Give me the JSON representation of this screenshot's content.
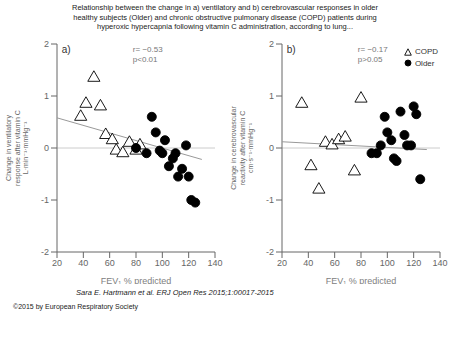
{
  "title": "Relationship between the change in a) ventilatory and b) cerebrovascular responses in older\nhealthy subjects (Older) and chronic obstructive pulmonary disease (COPD) patients during\nhyperoxic hypercapnia following vitamin C administration, according to lung...",
  "footer": [
    "Sara E. Hartmann et al. ERJ Open Res 2015;1:00017-2015",
    "©2015 by European Respiratory Society"
  ],
  "chart_data": [
    {
      "type": "scatter",
      "title": "a)",
      "annotations": [
        "r= −0.53\np<0.01"
      ],
      "x_label": "FEV₁ % predicted",
      "y_label": "Change in ventilatory\nresponse after vitamin C\nL·min⁻¹·mmHg⁻¹",
      "xlim": [
        20,
        140
      ],
      "ylim": [
        -2,
        2
      ],
      "xticks": [
        20,
        40,
        60,
        80,
        100,
        120,
        140
      ],
      "yticks": [
        -2,
        -1,
        0,
        1,
        2
      ],
      "grid": false,
      "series": [
        {
          "name": "COPD",
          "type": "scatter",
          "marker": "triangle-open",
          "color": "#000000",
          "x": [
            38,
            42,
            48,
            53,
            57,
            62,
            65,
            70,
            75,
            80,
            83
          ],
          "values": [
            0.6,
            0.85,
            1.35,
            0.8,
            0.25,
            0.15,
            -0.05,
            -0.1,
            0.1,
            -0.05,
            0.05
          ]
        },
        {
          "name": "Older",
          "type": "scatter",
          "marker": "circle",
          "color": "#000000",
          "x": [
            80,
            88,
            92,
            95,
            98,
            100,
            102,
            105,
            108,
            110,
            112,
            115,
            118,
            120,
            122,
            125
          ],
          "values": [
            0.0,
            -0.1,
            0.6,
            0.3,
            -0.05,
            -0.1,
            0.15,
            -0.35,
            -0.2,
            -0.1,
            -0.55,
            -0.4,
            0.05,
            -0.55,
            -1.0,
            -1.05
          ]
        },
        {
          "type": "line",
          "color": "#999999",
          "x": [
            20,
            130
          ],
          "values": [
            0.58,
            -0.22
          ]
        }
      ]
    },
    {
      "type": "scatter",
      "title": "b)",
      "annotations": [
        "r= −0.17\np>0.05"
      ],
      "x_label": "FEV₁ % predicted",
      "y_label": "Change in cerebrovascular\nreactivity after vitamin C\ncm·s⁻¹·mmHg⁻¹",
      "xlim": [
        20,
        140
      ],
      "ylim": [
        -2,
        2
      ],
      "xticks": [
        20,
        40,
        60,
        80,
        100,
        120,
        140
      ],
      "yticks": [
        -2,
        -1,
        0,
        1,
        2
      ],
      "grid": false,
      "legend": "upper right",
      "series": [
        {
          "name": "COPD",
          "type": "scatter",
          "marker": "triangle-open",
          "color": "#000000",
          "x": [
            35,
            42,
            48,
            53,
            58,
            63,
            68,
            75,
            80
          ],
          "values": [
            0.85,
            -0.35,
            -0.8,
            0.1,
            0.05,
            0.15,
            0.2,
            -0.45,
            0.95
          ]
        },
        {
          "name": "Older",
          "type": "scatter",
          "marker": "circle",
          "color": "#000000",
          "x": [
            88,
            92,
            95,
            98,
            100,
            103,
            105,
            107,
            110,
            113,
            115,
            118,
            120,
            122,
            125
          ],
          "values": [
            -0.1,
            -0.1,
            0.05,
            0.6,
            0.3,
            0.15,
            -0.2,
            -0.25,
            0.7,
            0.25,
            0.05,
            0.05,
            0.8,
            0.65,
            -0.6
          ]
        },
        {
          "type": "line",
          "color": "#999999",
          "x": [
            20,
            130
          ],
          "values": [
            0.12,
            -0.03
          ]
        }
      ]
    }
  ]
}
